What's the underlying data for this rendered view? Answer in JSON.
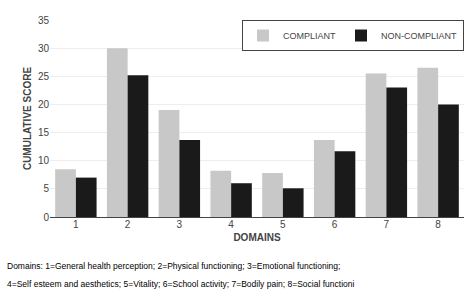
{
  "chart_data": {
    "type": "bar",
    "categories": [
      "1",
      "2",
      "3",
      "4",
      "5",
      "6",
      "7",
      "8"
    ],
    "series": [
      {
        "name": "COMPLIANT",
        "color": "#c8c8c8",
        "values": [
          8.5,
          30.0,
          19.0,
          8.2,
          7.8,
          13.7,
          25.5,
          26.5
        ]
      },
      {
        "name": "NON-COMPLIANT",
        "color": "#1a1a1a",
        "values": [
          7.0,
          25.2,
          13.7,
          6.0,
          5.1,
          11.7,
          23.0,
          20.0
        ]
      }
    ],
    "xlabel": "DOMAINS",
    "ylabel": "CUMULATIVE SCORE",
    "ylim": [
      0,
      35
    ],
    "yticks": [
      0,
      5,
      10,
      15,
      20,
      25,
      30,
      35
    ],
    "grid": true,
    "legend": "upper right",
    "annotations": [
      "Domains: 1=General health perception; 2=Physical functioning; 3=Emotional functioning;",
      "4=Self esteem and aesthetics; 5=Vitality; 6=School activity; 7=Bodily pain; 8=Social functioni"
    ]
  }
}
